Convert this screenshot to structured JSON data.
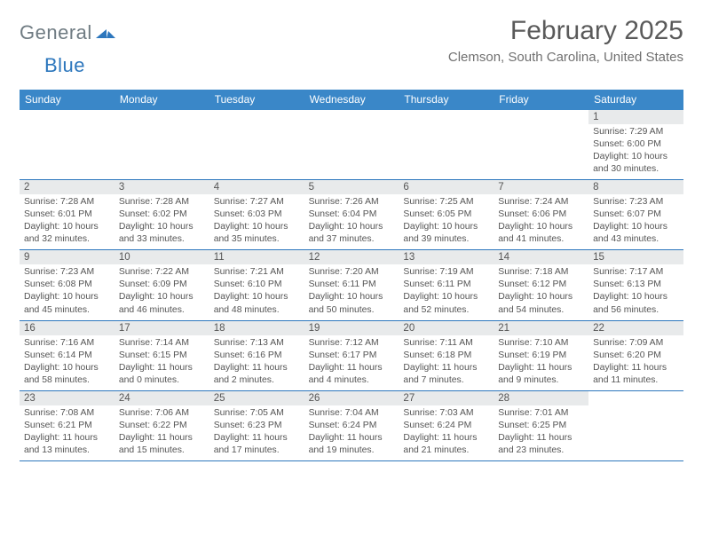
{
  "logo": {
    "general": "General",
    "blue": "Blue"
  },
  "title": "February 2025",
  "subtitle": "Clemson, South Carolina, United States",
  "colors": {
    "header_bg": "#3a87c8",
    "header_text": "#ffffff",
    "daynum_bg": "#e8eaeb",
    "week_border": "#2d77bd",
    "body_text": "#555555",
    "logo_general": "#6f7b82",
    "logo_blue": "#2d77bd"
  },
  "weekdays": [
    "Sunday",
    "Monday",
    "Tuesday",
    "Wednesday",
    "Thursday",
    "Friday",
    "Saturday"
  ],
  "layout": {
    "type": "table",
    "columns": 7,
    "rows": 5,
    "first_weekday_index": 6,
    "total_days": 28,
    "font_sizes": {
      "title": 30,
      "subtitle": 15,
      "weekday": 12,
      "daynum": 11.5,
      "body": 10.4
    }
  },
  "days": [
    {
      "n": 1,
      "sunrise": "7:29 AM",
      "sunset": "6:00 PM",
      "daylight": "10 hours and 30 minutes."
    },
    {
      "n": 2,
      "sunrise": "7:28 AM",
      "sunset": "6:01 PM",
      "daylight": "10 hours and 32 minutes."
    },
    {
      "n": 3,
      "sunrise": "7:28 AM",
      "sunset": "6:02 PM",
      "daylight": "10 hours and 33 minutes."
    },
    {
      "n": 4,
      "sunrise": "7:27 AM",
      "sunset": "6:03 PM",
      "daylight": "10 hours and 35 minutes."
    },
    {
      "n": 5,
      "sunrise": "7:26 AM",
      "sunset": "6:04 PM",
      "daylight": "10 hours and 37 minutes."
    },
    {
      "n": 6,
      "sunrise": "7:25 AM",
      "sunset": "6:05 PM",
      "daylight": "10 hours and 39 minutes."
    },
    {
      "n": 7,
      "sunrise": "7:24 AM",
      "sunset": "6:06 PM",
      "daylight": "10 hours and 41 minutes."
    },
    {
      "n": 8,
      "sunrise": "7:23 AM",
      "sunset": "6:07 PM",
      "daylight": "10 hours and 43 minutes."
    },
    {
      "n": 9,
      "sunrise": "7:23 AM",
      "sunset": "6:08 PM",
      "daylight": "10 hours and 45 minutes."
    },
    {
      "n": 10,
      "sunrise": "7:22 AM",
      "sunset": "6:09 PM",
      "daylight": "10 hours and 46 minutes."
    },
    {
      "n": 11,
      "sunrise": "7:21 AM",
      "sunset": "6:10 PM",
      "daylight": "10 hours and 48 minutes."
    },
    {
      "n": 12,
      "sunrise": "7:20 AM",
      "sunset": "6:11 PM",
      "daylight": "10 hours and 50 minutes."
    },
    {
      "n": 13,
      "sunrise": "7:19 AM",
      "sunset": "6:11 PM",
      "daylight": "10 hours and 52 minutes."
    },
    {
      "n": 14,
      "sunrise": "7:18 AM",
      "sunset": "6:12 PM",
      "daylight": "10 hours and 54 minutes."
    },
    {
      "n": 15,
      "sunrise": "7:17 AM",
      "sunset": "6:13 PM",
      "daylight": "10 hours and 56 minutes."
    },
    {
      "n": 16,
      "sunrise": "7:16 AM",
      "sunset": "6:14 PM",
      "daylight": "10 hours and 58 minutes."
    },
    {
      "n": 17,
      "sunrise": "7:14 AM",
      "sunset": "6:15 PM",
      "daylight": "11 hours and 0 minutes."
    },
    {
      "n": 18,
      "sunrise": "7:13 AM",
      "sunset": "6:16 PM",
      "daylight": "11 hours and 2 minutes."
    },
    {
      "n": 19,
      "sunrise": "7:12 AM",
      "sunset": "6:17 PM",
      "daylight": "11 hours and 4 minutes."
    },
    {
      "n": 20,
      "sunrise": "7:11 AM",
      "sunset": "6:18 PM",
      "daylight": "11 hours and 7 minutes."
    },
    {
      "n": 21,
      "sunrise": "7:10 AM",
      "sunset": "6:19 PM",
      "daylight": "11 hours and 9 minutes."
    },
    {
      "n": 22,
      "sunrise": "7:09 AM",
      "sunset": "6:20 PM",
      "daylight": "11 hours and 11 minutes."
    },
    {
      "n": 23,
      "sunrise": "7:08 AM",
      "sunset": "6:21 PM",
      "daylight": "11 hours and 13 minutes."
    },
    {
      "n": 24,
      "sunrise": "7:06 AM",
      "sunset": "6:22 PM",
      "daylight": "11 hours and 15 minutes."
    },
    {
      "n": 25,
      "sunrise": "7:05 AM",
      "sunset": "6:23 PM",
      "daylight": "11 hours and 17 minutes."
    },
    {
      "n": 26,
      "sunrise": "7:04 AM",
      "sunset": "6:24 PM",
      "daylight": "11 hours and 19 minutes."
    },
    {
      "n": 27,
      "sunrise": "7:03 AM",
      "sunset": "6:24 PM",
      "daylight": "11 hours and 21 minutes."
    },
    {
      "n": 28,
      "sunrise": "7:01 AM",
      "sunset": "6:25 PM",
      "daylight": "11 hours and 23 minutes."
    }
  ]
}
